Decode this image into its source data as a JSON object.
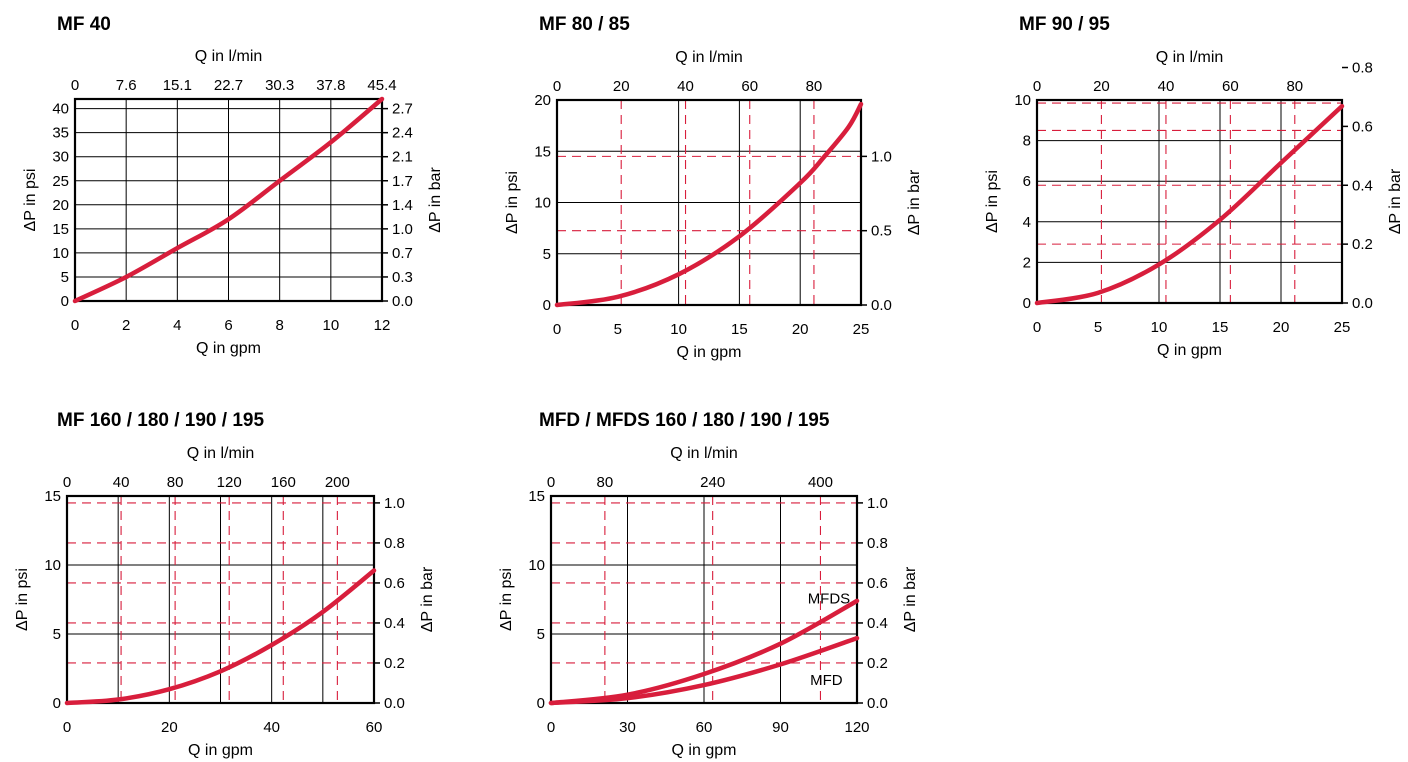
{
  "colors": {
    "curve": "#d81e3c",
    "dashed_grid": "#d81e3c",
    "frame": "#000000"
  },
  "chart_data": [
    {
      "id": "mf40",
      "type": "line",
      "title": "MF 40",
      "xlabel": "Q in gpm",
      "ylabel": "ΔP in psi",
      "x2label": "Q in l/min",
      "y2label": "ΔP in bar",
      "xlim": [
        0,
        12
      ],
      "ylim": [
        0,
        42
      ],
      "x_ticks": [
        0,
        2,
        4,
        6,
        8,
        10,
        12
      ],
      "x_tick_labels": [
        "0",
        "2",
        "4",
        "6",
        "8",
        "10",
        "12"
      ],
      "y_ticks": [
        0,
        5,
        10,
        15,
        20,
        25,
        30,
        35,
        40
      ],
      "y_tick_labels": [
        "0",
        "5",
        "10",
        "15",
        "20",
        "25",
        "30",
        "35",
        "40"
      ],
      "x2_ticks": [
        0,
        2,
        4,
        6,
        8,
        10,
        12
      ],
      "x2_tick_labels": [
        "0",
        "7.6",
        "15.1",
        "22.7",
        "30.3",
        "37.8",
        "45.4"
      ],
      "y2_ticks": [
        0,
        5,
        10,
        15,
        20,
        25,
        30,
        35,
        40
      ],
      "y2_tick_labels": [
        "0.0",
        "0.3",
        "0.7",
        "1.0",
        "1.4",
        "1.7",
        "2.1",
        "2.4",
        "2.7"
      ],
      "grid_solid_x": [
        2,
        4,
        6,
        8,
        10
      ],
      "grid_solid_y": [
        5,
        10,
        15,
        20,
        25,
        30,
        35,
        40
      ],
      "grid_dashed_x": [],
      "grid_dashed_y": [],
      "series": [
        {
          "x": [
            0,
            2,
            4,
            6,
            8,
            10,
            12
          ],
          "y": [
            0,
            5,
            11,
            17,
            25,
            33,
            42
          ]
        }
      ]
    },
    {
      "id": "mf80",
      "type": "line",
      "title": "MF 80 / 85",
      "xlabel": "Q in gpm",
      "ylabel": "ΔP in psi",
      "x2label": "Q in l/min",
      "y2label": "ΔP in bar",
      "xlim": [
        0,
        25
      ],
      "ylim": [
        0,
        20
      ],
      "x_ticks": [
        0,
        5,
        10,
        15,
        20,
        25
      ],
      "x_tick_labels": [
        "0",
        "5",
        "10",
        "15",
        "20",
        "25"
      ],
      "y_ticks": [
        0,
        5,
        10,
        15,
        20
      ],
      "y_tick_labels": [
        "0",
        "5",
        "10",
        "15",
        "20"
      ],
      "x2_ticks": [
        0,
        5.28,
        10.57,
        15.85,
        21.13
      ],
      "x2_tick_labels": [
        "0",
        "20",
        "40",
        "60",
        "80"
      ],
      "y2_ticks": [
        0,
        7.25,
        14.5
      ],
      "y2_tick_labels": [
        "0.0",
        "0.5",
        "1.0"
      ],
      "grid_solid_x": [
        10,
        15,
        20
      ],
      "grid_solid_y": [
        5,
        10,
        15
      ],
      "grid_dashed_x": [
        5.28,
        10.57,
        15.85,
        21.13
      ],
      "grid_dashed_y": [
        7.25,
        14.5
      ],
      "series": [
        {
          "x": [
            0,
            5,
            10,
            15,
            20,
            22,
            24,
            25
          ],
          "y": [
            0,
            0.8,
            3,
            6.7,
            11.9,
            14.5,
            17.4,
            19.6
          ]
        }
      ]
    },
    {
      "id": "mf90",
      "type": "line",
      "title": "MF 90 / 95",
      "xlabel": "Q in gpm",
      "ylabel": "ΔP in psi",
      "x2label": "Q in l/min",
      "y2label": "ΔP in bar",
      "xlim": [
        0,
        25
      ],
      "ylim": [
        0,
        10
      ],
      "x_ticks": [
        0,
        5,
        10,
        15,
        20,
        25
      ],
      "x_tick_labels": [
        "0",
        "5",
        "10",
        "15",
        "20",
        "25"
      ],
      "y_ticks": [
        0,
        2,
        4,
        6,
        8,
        10
      ],
      "y_tick_labels": [
        "0",
        "2",
        "4",
        "6",
        "8",
        "10"
      ],
      "x2_ticks": [
        0,
        5.28,
        10.57,
        15.85,
        21.13
      ],
      "x2_tick_labels": [
        "0",
        "20",
        "40",
        "60",
        "80"
      ],
      "y2_ticks": [
        0,
        2.9,
        5.8,
        8.7,
        11.6
      ],
      "y2_tick_labels": [
        "0.0",
        "0.2",
        "0.4",
        "0.6",
        "0.8"
      ],
      "grid_solid_x": [
        10,
        15,
        20
      ],
      "grid_solid_y": [
        2,
        4,
        6,
        8
      ],
      "grid_dashed_x": [
        5.28,
        10.57,
        15.85,
        21.13
      ],
      "grid_dashed_y": [
        2.9,
        5.8,
        8.5,
        9.85
      ],
      "series": [
        {
          "x": [
            0,
            5,
            10,
            15,
            20,
            25
          ],
          "y": [
            0,
            0.5,
            1.9,
            4.1,
            6.9,
            9.7
          ]
        }
      ]
    },
    {
      "id": "mf160",
      "type": "line",
      "title": "MF 160 / 180 / 190 / 195",
      "xlabel": "Q in gpm",
      "ylabel": "ΔP in psi",
      "x2label": "Q in l/min",
      "y2label": "ΔP in bar",
      "xlim": [
        0,
        60
      ],
      "ylim": [
        0,
        15
      ],
      "x_ticks": [
        0,
        20,
        40,
        60
      ],
      "x_tick_labels": [
        "0",
        "20",
        "40",
        "60"
      ],
      "y_ticks": [
        0,
        5,
        10,
        15
      ],
      "y_tick_labels": [
        "0",
        "5",
        "10",
        "15"
      ],
      "x2_ticks": [
        0,
        10.57,
        21.13,
        31.7,
        42.27,
        52.84
      ],
      "x2_tick_labels": [
        "0",
        "40",
        "80",
        "120",
        "160",
        "200"
      ],
      "y2_ticks": [
        0,
        2.9,
        5.8,
        8.7,
        11.6,
        14.5
      ],
      "y2_tick_labels": [
        "0.0",
        "0.2",
        "0.4",
        "0.6",
        "0.8",
        "1.0"
      ],
      "grid_solid_x": [
        10,
        20,
        30,
        40,
        50
      ],
      "grid_solid_y": [
        5,
        10
      ],
      "grid_dashed_x": [
        10.57,
        21.13,
        31.7,
        42.27,
        52.84
      ],
      "grid_dashed_y": [
        2.9,
        5.8,
        8.7,
        11.6,
        14.5
      ],
      "series": [
        {
          "x": [
            0,
            10,
            20,
            30,
            40,
            50,
            60
          ],
          "y": [
            0,
            0.25,
            1,
            2.3,
            4.2,
            6.6,
            9.6
          ]
        }
      ]
    },
    {
      "id": "mfd160",
      "type": "line",
      "title": "MFD / MFDS 160 / 180 / 190 / 195",
      "xlabel": "Q in gpm",
      "ylabel": "ΔP in psi",
      "x2label": "Q in l/min",
      "y2label": "ΔP in bar",
      "xlim": [
        0,
        120
      ],
      "ylim": [
        0,
        15
      ],
      "x_ticks": [
        0,
        30,
        60,
        90,
        120
      ],
      "x_tick_labels": [
        "0",
        "30",
        "60",
        "90",
        "120"
      ],
      "y_ticks": [
        0,
        5,
        10,
        15
      ],
      "y_tick_labels": [
        "0",
        "5",
        "10",
        "15"
      ],
      "x2_ticks": [
        0,
        21.13,
        63.4,
        105.67
      ],
      "x2_tick_labels": [
        "0",
        "80",
        "240",
        "400"
      ],
      "y2_ticks": [
        0,
        2.9,
        5.8,
        8.7,
        11.6,
        14.5
      ],
      "y2_tick_labels": [
        "0.0",
        "0.2",
        "0.4",
        "0.6",
        "0.8",
        "1.0"
      ],
      "grid_solid_x": [
        30,
        60,
        90
      ],
      "grid_solid_y": [
        5,
        10
      ],
      "grid_dashed_x": [
        21.13,
        63.4,
        105.67
      ],
      "grid_dashed_y": [
        2.9,
        5.8,
        8.7,
        11.6,
        14.5
      ],
      "series": [
        {
          "name": "MFDS",
          "x": [
            0,
            30,
            60,
            90,
            120
          ],
          "y": [
            0,
            0.6,
            2.1,
            4.3,
            7.4
          ]
        },
        {
          "name": "MFD",
          "x": [
            0,
            30,
            60,
            90,
            120
          ],
          "y": [
            0,
            0.35,
            1.3,
            2.8,
            4.7
          ]
        }
      ]
    }
  ]
}
